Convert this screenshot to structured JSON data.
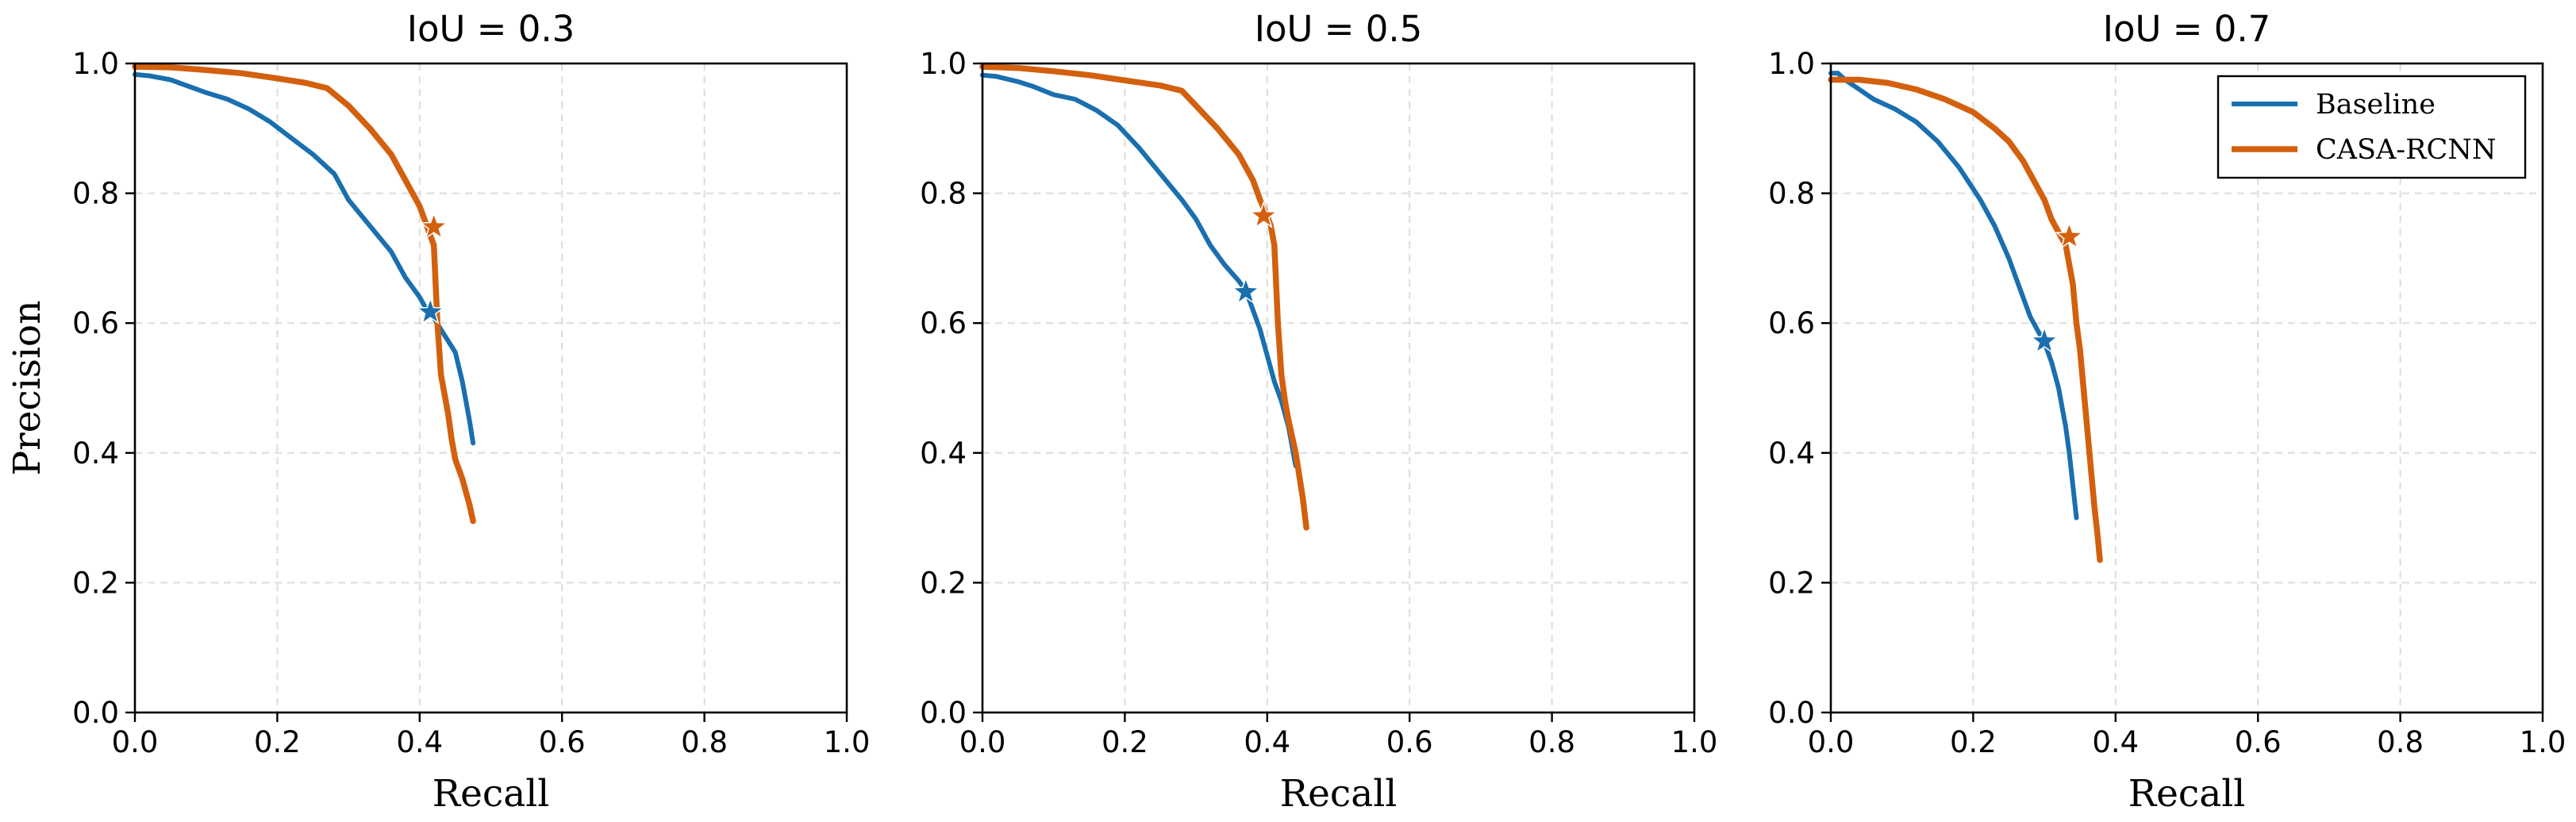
{
  "colors": {
    "baseline": "#1a6fae",
    "casa": "#d3600f"
  },
  "legend": {
    "placement": "top-right",
    "baseline": "Baseline",
    "casa": "CASA-RCNN"
  },
  "chart_data": [
    {
      "type": "line",
      "title": "IoU = 0.3",
      "xlabel": "Recall",
      "ylabel": "Precision",
      "xlim": [
        0,
        1
      ],
      "ylim": [
        0,
        1
      ],
      "xticks": [
        "0.0",
        "0.2",
        "0.4",
        "0.6",
        "0.8",
        "1.0"
      ],
      "yticks": [
        "0.0",
        "0.2",
        "0.4",
        "0.6",
        "0.8",
        "1.0"
      ],
      "grid": true,
      "series": [
        {
          "name": "Baseline",
          "color": "#1a6fae",
          "x": [
            0.0,
            0.02,
            0.05,
            0.07,
            0.1,
            0.13,
            0.16,
            0.19,
            0.22,
            0.25,
            0.28,
            0.3,
            0.33,
            0.36,
            0.38,
            0.4,
            0.41,
            0.42,
            0.43,
            0.45,
            0.46,
            0.47,
            0.475
          ],
          "y": [
            0.983,
            0.981,
            0.975,
            0.967,
            0.955,
            0.945,
            0.93,
            0.91,
            0.885,
            0.86,
            0.83,
            0.79,
            0.75,
            0.71,
            0.67,
            0.64,
            0.62,
            0.608,
            0.59,
            0.555,
            0.51,
            0.45,
            0.415
          ],
          "marker": {
            "x": 0.415,
            "y": 0.617
          }
        },
        {
          "name": "CASA-RCNN",
          "color": "#d3600f",
          "x": [
            0.0,
            0.05,
            0.1,
            0.15,
            0.2,
            0.24,
            0.27,
            0.3,
            0.33,
            0.36,
            0.38,
            0.4,
            0.41,
            0.42,
            0.425,
            0.43,
            0.435,
            0.44,
            0.445,
            0.45,
            0.46,
            0.47,
            0.475
          ],
          "y": [
            0.995,
            0.994,
            0.99,
            0.985,
            0.977,
            0.97,
            0.962,
            0.935,
            0.9,
            0.86,
            0.82,
            0.78,
            0.75,
            0.72,
            0.6,
            0.52,
            0.49,
            0.46,
            0.42,
            0.39,
            0.36,
            0.32,
            0.295
          ],
          "marker": {
            "x": 0.42,
            "y": 0.748
          }
        }
      ]
    },
    {
      "type": "line",
      "title": "IoU = 0.5",
      "xlabel": "Recall",
      "ylabel": "",
      "xlim": [
        0,
        1
      ],
      "ylim": [
        0,
        1
      ],
      "xticks": [
        "0.0",
        "0.2",
        "0.4",
        "0.6",
        "0.8",
        "1.0"
      ],
      "yticks": [
        "0.0",
        "0.2",
        "0.4",
        "0.6",
        "0.8",
        "1.0"
      ],
      "grid": true,
      "series": [
        {
          "name": "Baseline",
          "color": "#1a6fae",
          "x": [
            0.0,
            0.02,
            0.05,
            0.07,
            0.1,
            0.13,
            0.16,
            0.19,
            0.22,
            0.25,
            0.28,
            0.3,
            0.32,
            0.34,
            0.36,
            0.37,
            0.38,
            0.39,
            0.4,
            0.41,
            0.42,
            0.43,
            0.44
          ],
          "y": [
            0.982,
            0.98,
            0.972,
            0.965,
            0.952,
            0.945,
            0.928,
            0.905,
            0.87,
            0.83,
            0.79,
            0.76,
            0.72,
            0.69,
            0.665,
            0.65,
            0.62,
            0.59,
            0.55,
            0.51,
            0.48,
            0.44,
            0.38
          ],
          "marker": {
            "x": 0.37,
            "y": 0.648
          }
        },
        {
          "name": "CASA-RCNN",
          "color": "#d3600f",
          "x": [
            0.0,
            0.05,
            0.1,
            0.15,
            0.2,
            0.25,
            0.28,
            0.3,
            0.33,
            0.36,
            0.38,
            0.39,
            0.4,
            0.405,
            0.41,
            0.415,
            0.42,
            0.425,
            0.43,
            0.44,
            0.45,
            0.455
          ],
          "y": [
            0.995,
            0.993,
            0.988,
            0.982,
            0.974,
            0.966,
            0.958,
            0.935,
            0.9,
            0.86,
            0.82,
            0.79,
            0.765,
            0.75,
            0.72,
            0.6,
            0.52,
            0.48,
            0.45,
            0.4,
            0.33,
            0.285
          ],
          "marker": {
            "x": 0.395,
            "y": 0.765
          }
        }
      ]
    },
    {
      "type": "line",
      "title": "IoU = 0.7",
      "xlabel": "Recall",
      "ylabel": "",
      "xlim": [
        0,
        1
      ],
      "ylim": [
        0,
        1
      ],
      "xticks": [
        "0.0",
        "0.2",
        "0.4",
        "0.6",
        "0.8",
        "1.0"
      ],
      "yticks": [
        "0.0",
        "0.2",
        "0.4",
        "0.6",
        "0.8",
        "1.0"
      ],
      "grid": true,
      "series": [
        {
          "name": "Baseline",
          "color": "#1a6fae",
          "x": [
            0.0,
            0.01,
            0.02,
            0.04,
            0.06,
            0.09,
            0.12,
            0.15,
            0.18,
            0.21,
            0.23,
            0.25,
            0.26,
            0.27,
            0.28,
            0.29,
            0.3,
            0.31,
            0.32,
            0.33,
            0.335,
            0.34,
            0.345
          ],
          "y": [
            0.985,
            0.985,
            0.975,
            0.96,
            0.945,
            0.93,
            0.91,
            0.88,
            0.84,
            0.79,
            0.75,
            0.7,
            0.67,
            0.64,
            0.61,
            0.59,
            0.57,
            0.54,
            0.5,
            0.44,
            0.4,
            0.35,
            0.3
          ],
          "marker": {
            "x": 0.3,
            "y": 0.572
          }
        },
        {
          "name": "CASA-RCNN",
          "color": "#d3600f",
          "x": [
            0.0,
            0.04,
            0.08,
            0.12,
            0.16,
            0.2,
            0.23,
            0.25,
            0.27,
            0.29,
            0.3,
            0.31,
            0.32,
            0.33,
            0.34,
            0.345,
            0.35,
            0.355,
            0.36,
            0.365,
            0.37,
            0.375,
            0.378
          ],
          "y": [
            0.975,
            0.975,
            0.97,
            0.96,
            0.945,
            0.925,
            0.9,
            0.88,
            0.85,
            0.81,
            0.79,
            0.76,
            0.74,
            0.72,
            0.66,
            0.6,
            0.56,
            0.5,
            0.44,
            0.38,
            0.32,
            0.27,
            0.235
          ],
          "marker": {
            "x": 0.335,
            "y": 0.733
          }
        }
      ]
    }
  ]
}
